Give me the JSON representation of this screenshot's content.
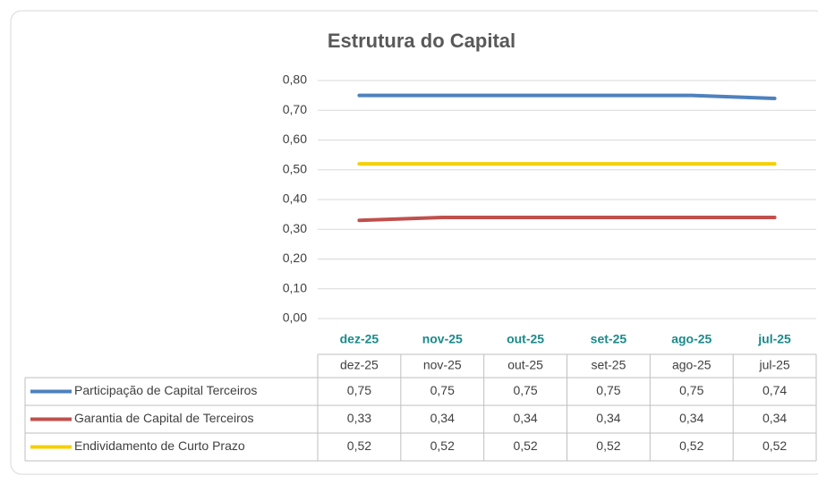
{
  "chart_data": {
    "type": "line",
    "title": "Estrutura do Capital",
    "categories": [
      "dez-25",
      "nov-25",
      "out-25",
      "set-25",
      "ago-25",
      "jul-25"
    ],
    "series": [
      {
        "name": "Participação de Capital Terceiros",
        "color": "#4f81bd",
        "values": [
          0.75,
          0.75,
          0.75,
          0.75,
          0.75,
          0.74
        ],
        "value_labels": [
          "0,75",
          "0,75",
          "0,75",
          "0,75",
          "0,75",
          "0,74"
        ]
      },
      {
        "name": "Garantia de Capital de Terceiros",
        "color": "#c0504d",
        "values": [
          0.33,
          0.34,
          0.34,
          0.34,
          0.34,
          0.34
        ],
        "value_labels": [
          "0,33",
          "0,34",
          "0,34",
          "0,34",
          "0,34",
          "0,34"
        ]
      },
      {
        "name": "Endividamento de Curto Prazo",
        "color": "#f5d000",
        "values": [
          0.52,
          0.52,
          0.52,
          0.52,
          0.52,
          0.52
        ],
        "value_labels": [
          "0,52",
          "0,52",
          "0,52",
          "0,52",
          "0,52",
          "0,52"
        ]
      }
    ],
    "ylim": [
      0,
      0.8
    ],
    "yticks": [
      {
        "value": 0,
        "label": "0,00"
      },
      {
        "value": 0.1,
        "label": "0,10"
      },
      {
        "value": 0.2,
        "label": "0,20"
      },
      {
        "value": 0.3,
        "label": "0,30"
      },
      {
        "value": 0.4,
        "label": "0,40"
      },
      {
        "value": 0.5,
        "label": "0,50"
      },
      {
        "value": 0.6,
        "label": "0,60"
      },
      {
        "value": 0.7,
        "label": "0,70"
      },
      {
        "value": 0.8,
        "label": "0,80"
      }
    ],
    "grid": true
  }
}
